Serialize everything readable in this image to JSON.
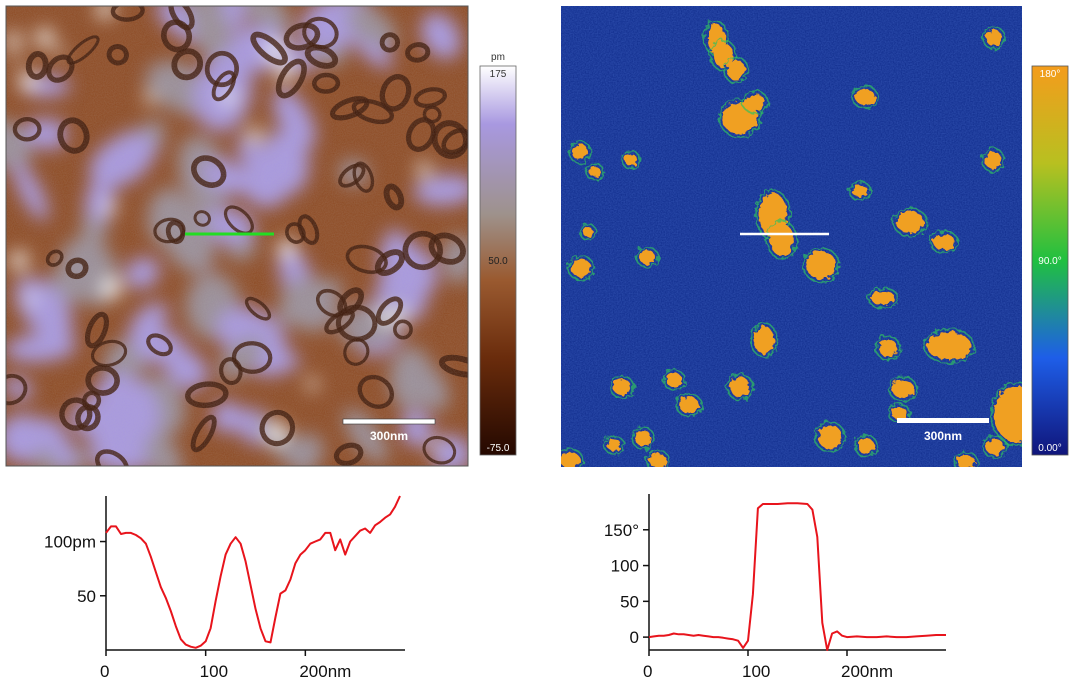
{
  "height_map": {
    "scale_bar": "300nm",
    "colorbar": {
      "unit": "pm",
      "max": "175",
      "mid": "50.0",
      "min": "-75.0"
    }
  },
  "phase_map": {
    "scale_bar": "300nm",
    "colorbar": {
      "max": "180°",
      "mid": "90.0°",
      "min": "0.00°"
    }
  },
  "colors": {
    "height_low": "#3a1404",
    "height_mid": "#8e4a22",
    "height_grey": "#9a8e98",
    "height_high": "#a898e0",
    "height_peak": "#ffffff",
    "phase_bg": "#0e2a8a",
    "phase_dot": "#f0a020",
    "profile_line": "#e8141c",
    "height_marker": "#22dd22",
    "phase_marker": "#ffffff"
  },
  "chart_data": [
    {
      "type": "line",
      "name": "height-profile",
      "x_ticks": [
        "0",
        "100",
        "200nm"
      ],
      "y_ticks": [
        "100pm",
        "50"
      ],
      "x_tick_values": [
        0,
        100,
        200
      ],
      "y_tick_values": [
        100,
        50
      ],
      "xlim": [
        0,
        300
      ],
      "ylim": [
        0,
        142
      ],
      "x": [
        0,
        5,
        10,
        15,
        20,
        25,
        30,
        35,
        40,
        45,
        50,
        55,
        60,
        65,
        70,
        75,
        80,
        85,
        90,
        95,
        100,
        105,
        110,
        115,
        120,
        125,
        130,
        135,
        140,
        145,
        150,
        155,
        160,
        165,
        170,
        175,
        180,
        185,
        190,
        195,
        200,
        205,
        210,
        215,
        220,
        225,
        230,
        235,
        240,
        245,
        250,
        255,
        260,
        265,
        270,
        275,
        280,
        285,
        290,
        295
      ],
      "y": [
        108,
        114,
        114,
        107,
        108,
        108,
        106,
        103,
        98,
        86,
        72,
        58,
        48,
        36,
        22,
        10,
        5,
        3,
        2,
        4,
        8,
        20,
        45,
        68,
        88,
        98,
        104,
        98,
        82,
        60,
        38,
        20,
        8,
        7,
        30,
        52,
        55,
        65,
        80,
        88,
        92,
        98,
        100,
        102,
        108,
        108,
        92,
        102,
        88,
        100,
        105,
        110,
        112,
        108,
        115,
        118,
        122,
        125,
        132,
        142
      ]
    },
    {
      "type": "line",
      "name": "phase-profile",
      "x_ticks": [
        "0",
        "100",
        "200nm"
      ],
      "y_ticks": [
        "150°",
        "100",
        "50",
        "0"
      ],
      "x_tick_values": [
        0,
        100,
        200
      ],
      "y_tick_values": [
        150,
        100,
        50,
        0
      ],
      "xlim": [
        0,
        300
      ],
      "ylim": [
        -18,
        200
      ],
      "x": [
        0,
        5,
        10,
        15,
        20,
        25,
        30,
        35,
        40,
        45,
        50,
        55,
        60,
        65,
        70,
        75,
        80,
        85,
        90,
        95,
        100,
        105,
        110,
        115,
        120,
        130,
        140,
        150,
        160,
        165,
        170,
        175,
        180,
        185,
        190,
        195,
        200,
        210,
        220,
        230,
        240,
        250,
        260,
        270,
        280,
        290,
        300
      ],
      "y": [
        0,
        1,
        2,
        2,
        3,
        5,
        4,
        4,
        3,
        2,
        3,
        2,
        1,
        0,
        0,
        -1,
        -2,
        -3,
        -5,
        -15,
        -5,
        60,
        180,
        186,
        186,
        186,
        187,
        187,
        186,
        178,
        140,
        20,
        -18,
        5,
        8,
        2,
        0,
        1,
        0,
        0,
        1,
        0,
        0,
        1,
        2,
        3,
        3
      ]
    }
  ]
}
